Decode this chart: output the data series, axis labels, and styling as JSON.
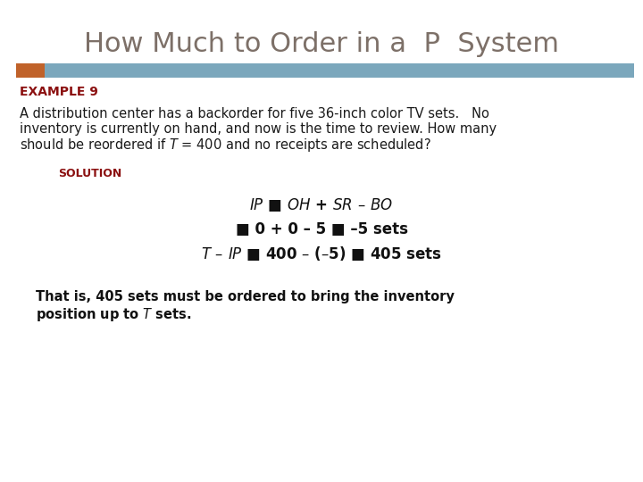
{
  "title": "How Much to Order in a  P  System",
  "title_color": "#7D7068",
  "title_fontsize": 22,
  "bar_orange_color": "#C0622A",
  "bar_blue_color": "#7BA7BC",
  "example_label": "EXAMPLE 9",
  "example_color": "#8B1010",
  "example_fontsize": 10,
  "body_fontsize": 10.5,
  "body_color": "#1a1a1a",
  "solution_label": "SOLUTION",
  "solution_color": "#8B1010",
  "solution_fontsize": 9,
  "eq_fontsize": 12,
  "eq_color": "#111111",
  "conclusion_fontsize": 10.5,
  "conclusion_color": "#111111",
  "bg_color": "#FFFFFF"
}
